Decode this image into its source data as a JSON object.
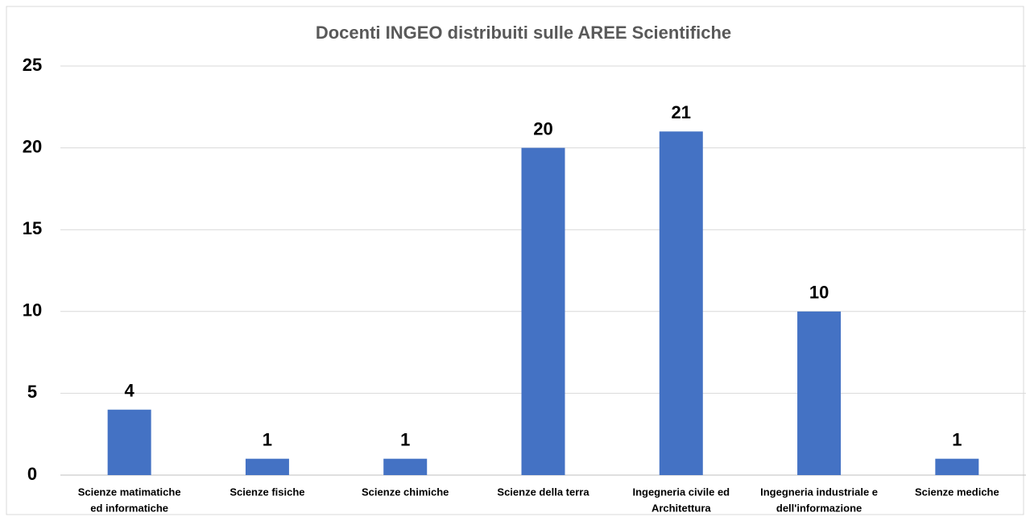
{
  "chart_data": {
    "type": "bar",
    "title": "Docenti INGEO distribuiti sulle AREE Scientifiche",
    "categories": [
      [
        "Scienze matimatiche",
        "ed informatiche"
      ],
      [
        "Scienze fisiche"
      ],
      [
        "Scienze chimiche"
      ],
      [
        "Scienze della terra"
      ],
      [
        "Ingegneria civile ed",
        "Architettura"
      ],
      [
        "Ingegneria industriale e",
        "dell'informazione"
      ],
      [
        "Scienze mediche"
      ]
    ],
    "values": [
      4,
      1,
      1,
      20,
      21,
      10,
      1
    ],
    "color": "#4472c4",
    "ylim": [
      0,
      25
    ],
    "yticks": [
      0,
      5,
      10,
      15,
      20,
      25
    ],
    "grid": true
  }
}
